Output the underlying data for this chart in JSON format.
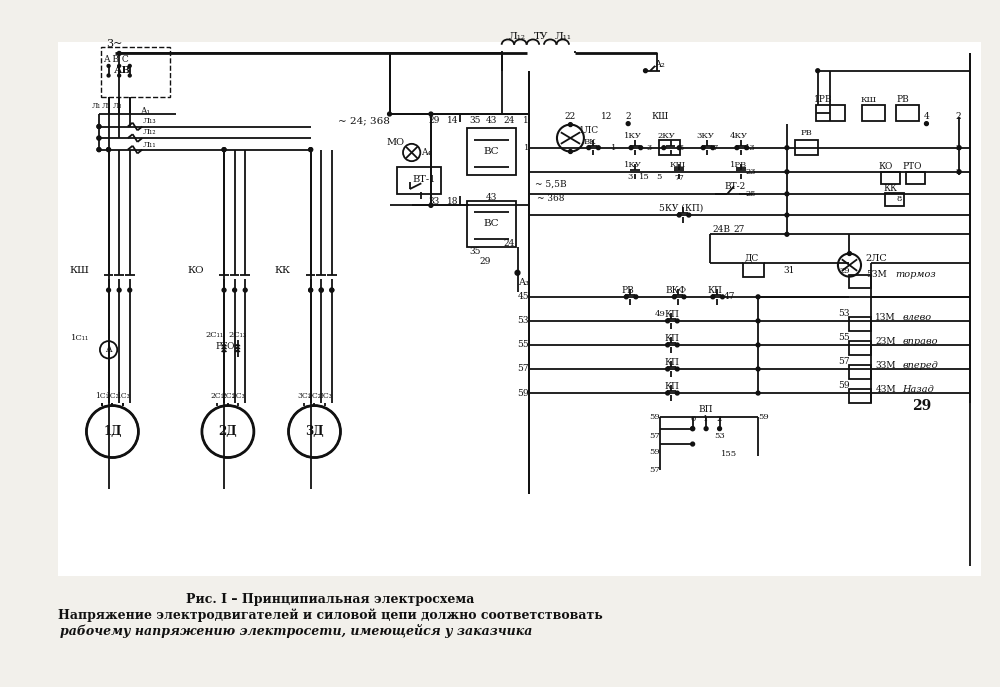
{
  "bg_color": "#f2f0eb",
  "line_color": "#111111",
  "title_line1": "Рис. I – Принципиальная электросхема",
  "title_line2": "Напряжение электродвигателей и силовой цепи должно соответствовать",
  "title_line3": "рабочему напряжению электросети, имеющейся у заказчика"
}
